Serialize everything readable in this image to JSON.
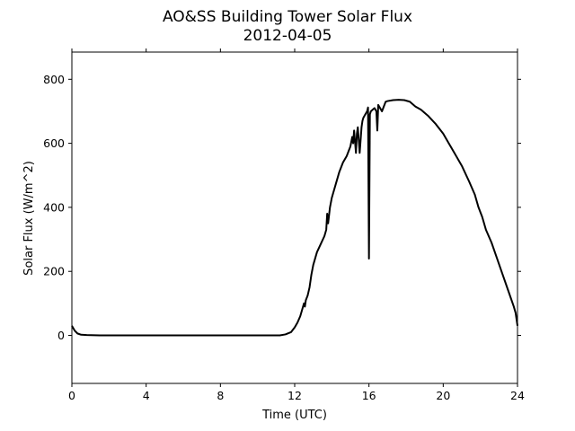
{
  "chart_data": {
    "type": "line",
    "title": "AO&SS Building Tower Solar Flux",
    "subtitle": "2012-04-05",
    "xlabel": "Time (UTC)",
    "ylabel": "Solar Flux (W/m^2)",
    "xlim": [
      0,
      24
    ],
    "ylim": [
      -150,
      885
    ],
    "x_ticks": [
      0,
      4,
      8,
      12,
      16,
      20,
      24
    ],
    "y_ticks": [
      0,
      200,
      400,
      600,
      800
    ],
    "grid": false,
    "line_color": "#000000",
    "series": [
      {
        "x": [
          0,
          0.15,
          0.3,
          0.5,
          0.8,
          1.5,
          3,
          5,
          7,
          9,
          10.5,
          11.2,
          11.5,
          11.8,
          12.0,
          12.15,
          12.3,
          12.4,
          12.5,
          12.55,
          12.6,
          12.7,
          12.8,
          12.9,
          13.0,
          13.2,
          13.4,
          13.6,
          13.7,
          13.75,
          13.8,
          13.9,
          14.0,
          14.2,
          14.4,
          14.6,
          14.8,
          15.0,
          15.1,
          15.15,
          15.2,
          15.3,
          15.35,
          15.4,
          15.5,
          15.6,
          15.65,
          15.7,
          15.8,
          15.9,
          15.95,
          16.0,
          16.05,
          16.1,
          16.2,
          16.3,
          16.4,
          16.45,
          16.5,
          16.6,
          16.7,
          16.8,
          16.9,
          17.0,
          17.3,
          17.6,
          17.9,
          18.2,
          18.5,
          18.8,
          19.2,
          19.6,
          20.0,
          20.3,
          20.6,
          21.0,
          21.4,
          21.7,
          21.9,
          22.1,
          22.3,
          22.6,
          22.9,
          23.2,
          23.5,
          23.8,
          23.9,
          23.95,
          24.0
        ],
        "y": [
          30,
          15,
          6,
          2,
          1,
          0,
          0,
          0,
          0,
          0,
          0,
          0,
          3,
          10,
          25,
          40,
          60,
          80,
          100,
          90,
          110,
          125,
          150,
          190,
          220,
          260,
          285,
          310,
          330,
          380,
          350,
          400,
          430,
          470,
          510,
          540,
          560,
          590,
          620,
          600,
          640,
          570,
          630,
          650,
          570,
          650,
          670,
          680,
          690,
          700,
          712,
          240,
          690,
          700,
          705,
          710,
          700,
          640,
          720,
          710,
          700,
          715,
          730,
          732,
          735,
          736,
          735,
          730,
          715,
          705,
          685,
          660,
          630,
          600,
          570,
          530,
          480,
          440,
          400,
          370,
          330,
          290,
          240,
          190,
          140,
          90,
          70,
          50,
          30
        ]
      }
    ]
  }
}
